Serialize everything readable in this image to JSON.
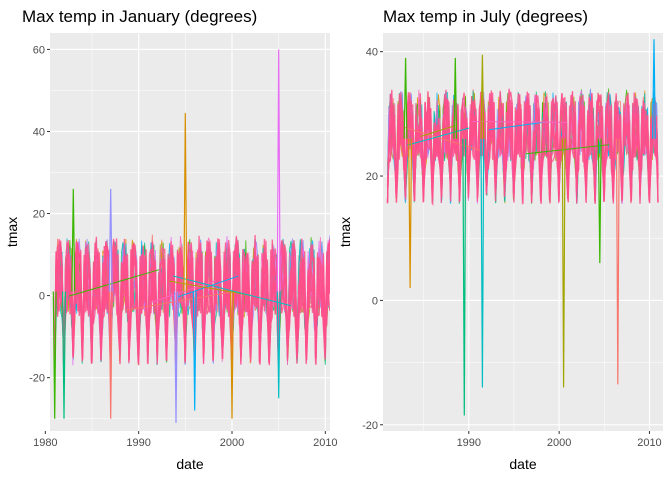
{
  "colors": {
    "panel_bg": "#ebebeb",
    "grid_major": "#ffffff",
    "tick_text": "#4d4d4d",
    "series_palette": [
      "#f8766d",
      "#d89000",
      "#a3a500",
      "#39b600",
      "#00bf7d",
      "#00bfc4",
      "#00b0f6",
      "#9590ff",
      "#e76bf3",
      "#ff62bc"
    ],
    "dominant_series": "#ff4f8a"
  },
  "chart_data": [
    {
      "type": "line",
      "title": "Max temp in January (degrees)",
      "xlabel": "date",
      "ylabel": "tmax",
      "xlim": [
        1980.5,
        2010.5
      ],
      "ylim": [
        -33,
        64
      ],
      "x_ticks": [
        1980,
        1990,
        2000,
        2010
      ],
      "y_ticks": [
        -20,
        0,
        20,
        40,
        60
      ],
      "grid": true,
      "legend": "none",
      "season_month": "January",
      "years": [
        1981,
        2010
      ],
      "band": {
        "center": 1,
        "spread": 12
      },
      "spikes": [
        {
          "x": 1983.0,
          "y": 26,
          "color": "#39b600"
        },
        {
          "x": 1987.0,
          "y": 26,
          "color": "#9590ff"
        },
        {
          "x": 1995.0,
          "y": 44.5,
          "color": "#d89000"
        },
        {
          "x": 2005.0,
          "y": 60,
          "color": "#e76bf3"
        },
        {
          "x": 1981.0,
          "y": -30,
          "color": "#39b600"
        },
        {
          "x": 1982.0,
          "y": -30,
          "color": "#00bf7d"
        },
        {
          "x": 1987.0,
          "y": -30,
          "color": "#f8766d"
        },
        {
          "x": 1994.0,
          "y": -31,
          "color": "#9590ff"
        },
        {
          "x": 1996.0,
          "y": -28,
          "color": "#00b0f6"
        },
        {
          "x": 2000.0,
          "y": -30,
          "color": "#d89000"
        },
        {
          "x": 2005.0,
          "y": -25,
          "color": "#00bfc4"
        }
      ]
    },
    {
      "type": "line",
      "title": "Max temp in July (degrees)",
      "xlabel": "date",
      "ylabel": "tmax",
      "xlim": [
        1980.5,
        2011.5
      ],
      "ylim": [
        -21,
        43
      ],
      "x_ticks": [
        1990,
        2000,
        2010
      ],
      "y_ticks": [
        -20,
        0,
        20,
        40
      ],
      "grid": true,
      "legend": "none",
      "season_month": "July",
      "years": [
        1981,
        2010
      ],
      "band": {
        "center": 26,
        "spread": 7
      },
      "spikes": [
        {
          "x": 1983.5,
          "y": 2,
          "color": "#d89000"
        },
        {
          "x": 1989.5,
          "y": -18.5,
          "color": "#00bf7d"
        },
        {
          "x": 1991.5,
          "y": -14,
          "color": "#00bfc4"
        },
        {
          "x": 2000.5,
          "y": -14,
          "color": "#a3a500"
        },
        {
          "x": 2004.5,
          "y": 6,
          "color": "#39b600"
        },
        {
          "x": 2006.5,
          "y": -13.5,
          "color": "#f8766d"
        },
        {
          "x": 2010.5,
          "y": 42,
          "color": "#00b0f6"
        },
        {
          "x": 1983.0,
          "y": 39,
          "color": "#39b600"
        },
        {
          "x": 1988.5,
          "y": 39,
          "color": "#39b600"
        },
        {
          "x": 1991.5,
          "y": 39.5,
          "color": "#a3a500"
        }
      ]
    }
  ]
}
